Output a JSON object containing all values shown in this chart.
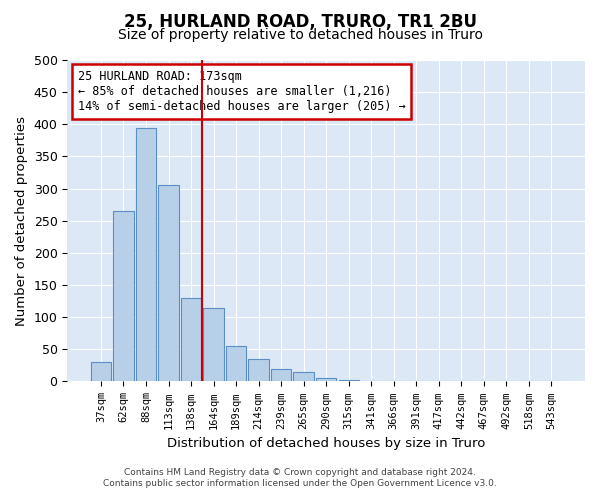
{
  "title1": "25, HURLAND ROAD, TRURO, TR1 2BU",
  "title2": "Size of property relative to detached houses in Truro",
  "xlabel": "Distribution of detached houses by size in Truro",
  "ylabel": "Number of detached properties",
  "bins": [
    "37sqm",
    "62sqm",
    "88sqm",
    "113sqm",
    "138sqm",
    "164sqm",
    "189sqm",
    "214sqm",
    "239sqm",
    "265sqm",
    "290sqm",
    "315sqm",
    "341sqm",
    "366sqm",
    "391sqm",
    "417sqm",
    "442sqm",
    "467sqm",
    "492sqm",
    "518sqm",
    "543sqm"
  ],
  "values": [
    30,
    265,
    395,
    305,
    130,
    115,
    55,
    35,
    20,
    15,
    5,
    2,
    1,
    0,
    0,
    0,
    0,
    0,
    0,
    0,
    0
  ],
  "bar_color": "#b8cfe8",
  "bar_edge_color": "#5b8ec4",
  "vline_x_index": 4.5,
  "vline_color": "#cc0000",
  "annotation_line1": "25 HURLAND ROAD: 173sqm",
  "annotation_line2": "← 85% of detached houses are smaller (1,216)",
  "annotation_line3": "14% of semi-detached houses are larger (205) →",
  "annotation_box_edgecolor": "#cc0000",
  "footer1": "Contains HM Land Registry data © Crown copyright and database right 2024.",
  "footer2": "Contains public sector information licensed under the Open Government Licence v3.0.",
  "plot_bg_color": "#dce8f5",
  "ylim": [
    0,
    500
  ],
  "yticks": [
    0,
    50,
    100,
    150,
    200,
    250,
    300,
    350,
    400,
    450,
    500
  ]
}
